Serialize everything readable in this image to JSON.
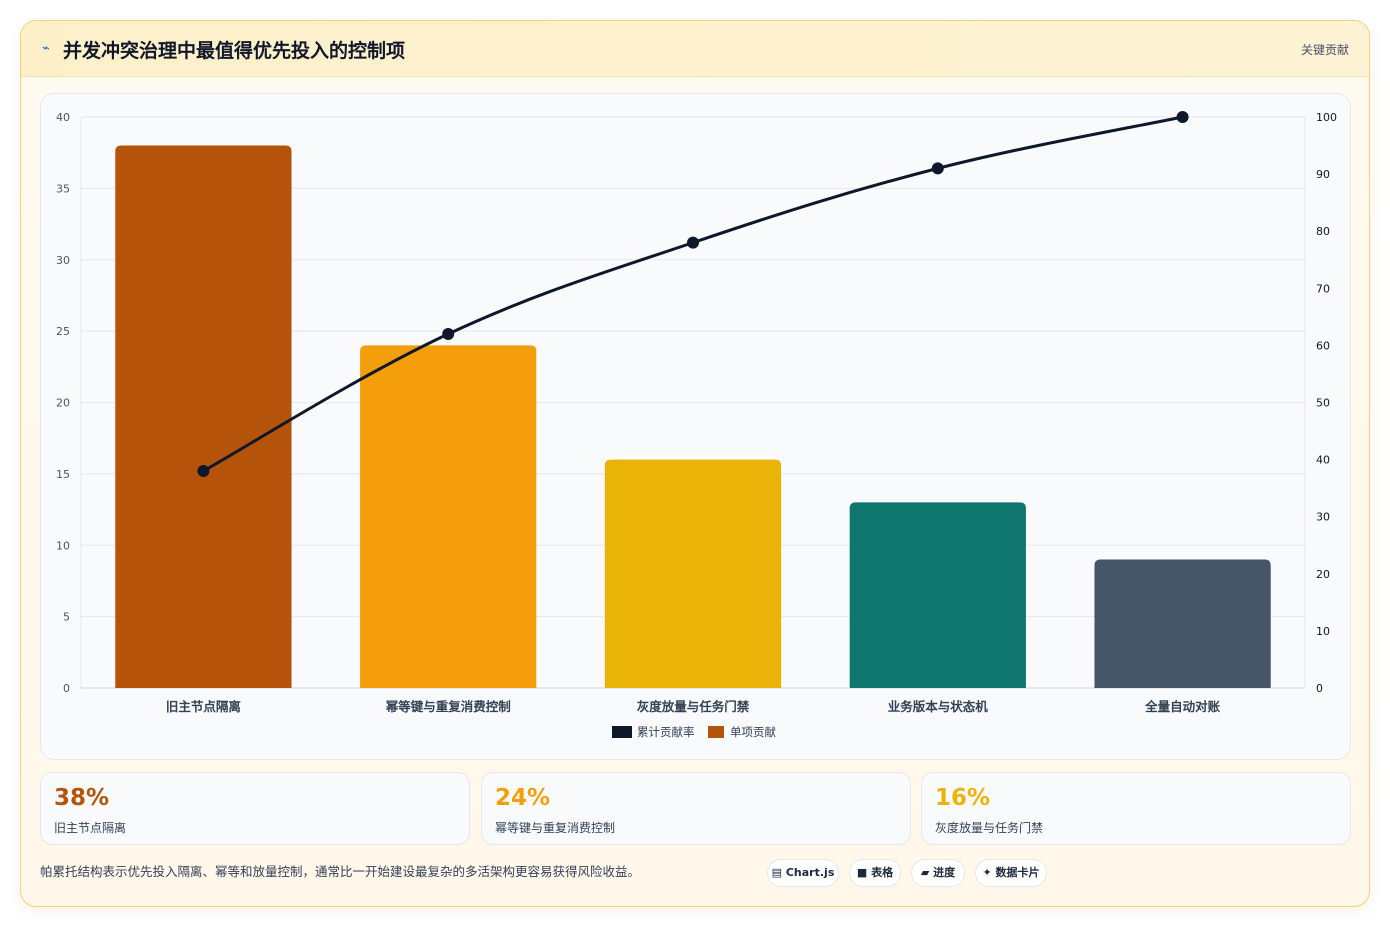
{
  "header": {
    "icon": "pulse-icon",
    "title": "并发冲突治理中最值得优先投入的控制项",
    "tag": "关键贡献"
  },
  "chart_data": {
    "type": "bar",
    "categories": [
      "旧主节点隔离",
      "幂等键与重复消费控制",
      "灰度放量与任务门禁",
      "业务版本与状态机",
      "全量自动对账"
    ],
    "series": [
      {
        "name": "单项贡献",
        "type": "bar",
        "axis": "left",
        "values": [
          38,
          24,
          16,
          13,
          9
        ],
        "colors": [
          "#b45309",
          "#f59e0b",
          "#eab308",
          "#0f766e",
          "#475569"
        ],
        "legend_color": "#b45309"
      },
      {
        "name": "累计贡献率",
        "type": "line",
        "axis": "right",
        "values": [
          38,
          62,
          78,
          91,
          100
        ],
        "color": "#0f172a"
      }
    ],
    "y_left": {
      "min": 0,
      "max": 40,
      "ticks": [
        0,
        5,
        10,
        15,
        20,
        25,
        30,
        35,
        40
      ]
    },
    "y_right": {
      "min": 0,
      "max": 100,
      "ticks": [
        0,
        10,
        20,
        30,
        40,
        50,
        60,
        70,
        80,
        90,
        100
      ]
    },
    "legend_order": [
      "累计贡献率",
      "单项贡献"
    ],
    "legend_position": "bottom",
    "grid": true
  },
  "stats": [
    {
      "value": "38%",
      "label": "旧主节点隔离",
      "color": "#b45309"
    },
    {
      "value": "24%",
      "label": "幂等键与重复消费控制",
      "color": "#f59e0b"
    },
    {
      "value": "16%",
      "label": "灰度放量与任务门禁",
      "color": "#eab308"
    }
  ],
  "footer": {
    "note": "帕累托结构表示优先投入隔离、幂等和放量控制，通常比一开始建设最复杂的多活架构更容易获得风险收益。",
    "chips": [
      {
        "icon": "chart-icon",
        "glyph": "▤",
        "label": "Chart.js"
      },
      {
        "icon": "table-icon",
        "glyph": "■",
        "label": "表格"
      },
      {
        "icon": "progress-icon",
        "glyph": "▰",
        "label": "进度"
      },
      {
        "icon": "sparkle-icon",
        "glyph": "✦",
        "label": "数据卡片"
      }
    ]
  }
}
